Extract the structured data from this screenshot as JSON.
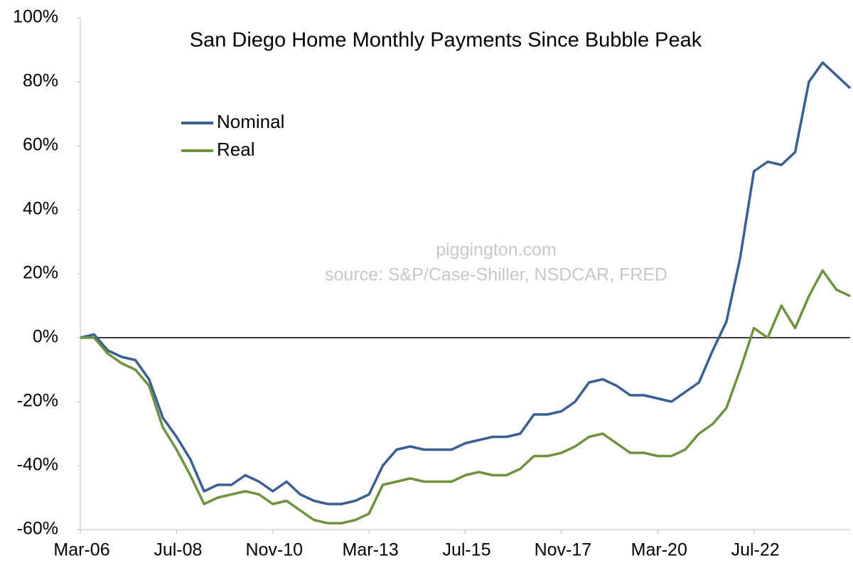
{
  "chart_data": {
    "type": "line",
    "title": "San Diego Home Monthly Payments Since Bubble Peak",
    "annotations": [
      "piggington.com",
      "source: S&P/Case-Shiller, NSDCAR, FRED"
    ],
    "categories": [
      "Mar-06",
      null,
      null,
      null,
      null,
      null,
      null,
      "Jul-08",
      null,
      null,
      null,
      null,
      null,
      null,
      "Nov-10",
      null,
      null,
      null,
      null,
      null,
      null,
      "Mar-13",
      null,
      null,
      null,
      null,
      null,
      null,
      "Jul-15",
      null,
      null,
      null,
      null,
      null,
      null,
      "Nov-17",
      null,
      null,
      null,
      null,
      null,
      null,
      "Mar-20",
      null,
      null,
      null,
      null,
      null,
      null,
      "Jul-22",
      null,
      null,
      null,
      null,
      null,
      null,
      null
    ],
    "series": [
      {
        "name": "Nominal",
        "color": "#3a5f93",
        "values": [
          0,
          1,
          -4,
          -6,
          -7,
          -13,
          -25,
          -31,
          -38,
          -48,
          -46,
          -46,
          -43,
          -45,
          -48,
          -45,
          -49,
          -51,
          -52,
          -52,
          -51,
          -49,
          -40,
          -35,
          -34,
          -35,
          -35,
          -35,
          -33,
          -32,
          -31,
          -31,
          -30,
          -24,
          -24,
          -23,
          -20,
          -14,
          -13,
          -15,
          -18,
          -18,
          -19,
          -20,
          -17,
          -14,
          -4,
          5,
          25,
          52,
          55,
          54,
          58,
          80,
          86,
          82,
          78
        ]
      },
      {
        "name": "Real",
        "color": "#6e9240",
        "values": [
          0,
          0,
          -5,
          -8,
          -10,
          -15,
          -28,
          -35,
          -43,
          -52,
          -50,
          -49,
          -48,
          -49,
          -52,
          -51,
          -54,
          -57,
          -58,
          -58,
          -57,
          -55,
          -46,
          -45,
          -44,
          -45,
          -45,
          -45,
          -43,
          -42,
          -43,
          -43,
          -41,
          -37,
          -37,
          -36,
          -34,
          -31,
          -30,
          -33,
          -36,
          -36,
          -37,
          -37,
          -35,
          -30,
          -27,
          -22,
          -10,
          3,
          0,
          10,
          3,
          13,
          21,
          15,
          13
        ]
      }
    ],
    "ylim": [
      -60,
      100
    ],
    "yticks": [
      {
        "value": -60,
        "label": "-60%"
      },
      {
        "value": -40,
        "label": "-40%"
      },
      {
        "value": -20,
        "label": "-20%"
      },
      {
        "value": 0,
        "label": "0%"
      },
      {
        "value": 20,
        "label": "20%"
      },
      {
        "value": 40,
        "label": "40%"
      },
      {
        "value": 60,
        "label": "60%"
      },
      {
        "value": 80,
        "label": "80%"
      },
      {
        "value": 100,
        "label": "100%"
      }
    ],
    "grid": false,
    "legend": "upper left"
  }
}
